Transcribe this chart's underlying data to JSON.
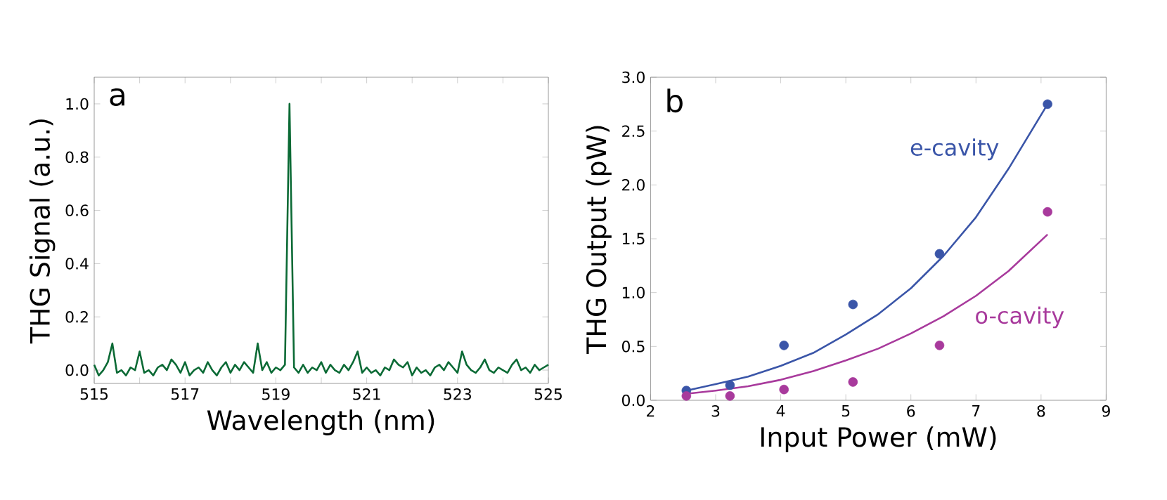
{
  "chart_data": [
    {
      "type": "line",
      "xlabel": "Wavelength (nm)",
      "ylabel": "THG Signal (a.u.)",
      "annotations": [
        "a"
      ],
      "xlim": [
        515,
        525
      ],
      "ylim": [
        -0.05,
        1.1
      ],
      "xticks": [
        515,
        {
          "value": 516,
          "label": null
        },
        517,
        {
          "value": 518,
          "label": null
        },
        519,
        {
          "value": 520,
          "label": null
        },
        521,
        {
          "value": 522,
          "label": null
        },
        523,
        {
          "value": 524,
          "label": null
        },
        525
      ],
      "yticks": [
        {
          "value": 0,
          "label": "0.0"
        },
        {
          "value": 0.2,
          "label": "0.2"
        },
        {
          "value": 0.4,
          "label": "0.4"
        },
        {
          "value": 0.6,
          "label": "0.6"
        },
        {
          "value": 0.8,
          "label": "0.8"
        },
        {
          "value": 1.0,
          "label": "1.0"
        }
      ],
      "series": [
        {
          "color": "#0b6a35",
          "x": [
            515.0,
            515.1,
            515.2,
            515.3,
            515.4,
            515.5,
            515.6,
            515.7,
            515.8,
            515.9,
            516.0,
            516.1,
            516.2,
            516.3,
            516.4,
            516.5,
            516.6,
            516.7,
            516.8,
            516.9,
            517.0,
            517.1,
            517.2,
            517.3,
            517.4,
            517.5,
            517.6,
            517.7,
            517.8,
            517.9,
            518.0,
            518.1,
            518.2,
            518.3,
            518.4,
            518.5,
            518.6,
            518.7,
            518.8,
            518.9,
            519.0,
            519.1,
            519.2,
            519.3,
            519.4,
            519.5,
            519.6,
            519.7,
            519.8,
            519.9,
            520.0,
            520.1,
            520.2,
            520.3,
            520.4,
            520.5,
            520.6,
            520.7,
            520.8,
            520.9,
            521.0,
            521.1,
            521.2,
            521.3,
            521.4,
            521.5,
            521.6,
            521.7,
            521.8,
            521.9,
            522.0,
            522.1,
            522.2,
            522.3,
            522.4,
            522.5,
            522.6,
            522.7,
            522.8,
            522.9,
            523.0,
            523.1,
            523.2,
            523.3,
            523.4,
            523.5,
            523.6,
            523.7,
            523.8,
            523.9,
            524.0,
            524.1,
            524.2,
            524.3,
            524.4,
            524.5,
            524.6,
            524.7,
            524.8,
            524.9,
            525.0
          ],
          "values": [
            0.02,
            -0.02,
            0.0,
            0.03,
            0.1,
            -0.01,
            0.0,
            -0.02,
            0.01,
            0.0,
            0.07,
            -0.01,
            0.0,
            -0.02,
            0.01,
            0.02,
            0.0,
            0.04,
            0.02,
            -0.01,
            0.03,
            -0.02,
            0.0,
            0.01,
            -0.01,
            0.03,
            0.0,
            -0.02,
            0.01,
            0.03,
            -0.01,
            0.02,
            0.0,
            0.03,
            0.01,
            -0.01,
            0.1,
            0.0,
            0.03,
            -0.01,
            0.01,
            0.0,
            0.02,
            1.0,
            0.01,
            -0.01,
            0.02,
            -0.01,
            0.01,
            0.0,
            0.03,
            -0.01,
            0.02,
            0.0,
            -0.01,
            0.02,
            0.0,
            0.03,
            0.07,
            -0.01,
            0.01,
            -0.01,
            0.0,
            -0.02,
            0.01,
            0.0,
            0.04,
            0.02,
            0.01,
            0.03,
            -0.02,
            0.01,
            -0.01,
            0.0,
            -0.02,
            0.01,
            0.02,
            0.0,
            0.03,
            0.01,
            -0.01,
            0.07,
            0.02,
            0.0,
            -0.01,
            0.01,
            0.04,
            0.0,
            -0.01,
            0.01,
            0.0,
            -0.01,
            0.02,
            0.04,
            0.0,
            0.01,
            -0.01,
            0.02,
            0.0,
            0.01,
            0.02
          ]
        }
      ]
    },
    {
      "type": "scatter",
      "xlabel": "Input Power (mW)",
      "ylabel": "THG Output (pW)",
      "annotations": [
        "b"
      ],
      "xlim": [
        2,
        9
      ],
      "ylim": [
        0,
        3.0
      ],
      "xticks": [
        2,
        3,
        4,
        5,
        6,
        7,
        8,
        9
      ],
      "yticks": [
        {
          "value": 0,
          "label": "0.0"
        },
        {
          "value": 0.5,
          "label": "0.5"
        },
        {
          "value": 1.0,
          "label": "1.0"
        },
        {
          "value": 1.5,
          "label": "1.5"
        },
        {
          "value": 2.0,
          "label": "2.0"
        },
        {
          "value": 2.5,
          "label": "2.5"
        },
        {
          "value": 3.0,
          "label": "3.0"
        }
      ],
      "series": [
        {
          "type": "line",
          "marker": "none",
          "color": "#3a55a8",
          "x": [
            2.55,
            3,
            3.5,
            4,
            4.5,
            5,
            5.5,
            6,
            6.5,
            7,
            7.5,
            8.1
          ],
          "values": [
            0.09,
            0.15,
            0.22,
            0.32,
            0.44,
            0.61,
            0.8,
            1.04,
            1.34,
            1.7,
            2.15,
            2.75
          ]
        },
        {
          "type": "line",
          "marker": "none",
          "color": "#a83a9c",
          "x": [
            2.55,
            3,
            3.5,
            4,
            4.5,
            5,
            5.5,
            6,
            6.5,
            7,
            7.5,
            8.1
          ],
          "values": [
            0.06,
            0.09,
            0.13,
            0.19,
            0.27,
            0.37,
            0.48,
            0.62,
            0.78,
            0.97,
            1.2,
            1.54
          ]
        },
        {
          "name": "e-cavity",
          "marker": "circle",
          "color": "#3a55a8",
          "x": [
            2.55,
            3.22,
            4.05,
            5.11,
            6.44,
            8.1
          ],
          "values": [
            0.09,
            0.14,
            0.51,
            0.89,
            1.36,
            2.75
          ]
        },
        {
          "name": "o-cavity",
          "marker": "circle",
          "color": "#a83a9c",
          "x": [
            2.55,
            3.22,
            4.05,
            5.11,
            6.44,
            8.1
          ],
          "values": [
            0.04,
            0.04,
            0.1,
            0.17,
            0.51,
            1.75
          ]
        }
      ]
    }
  ]
}
